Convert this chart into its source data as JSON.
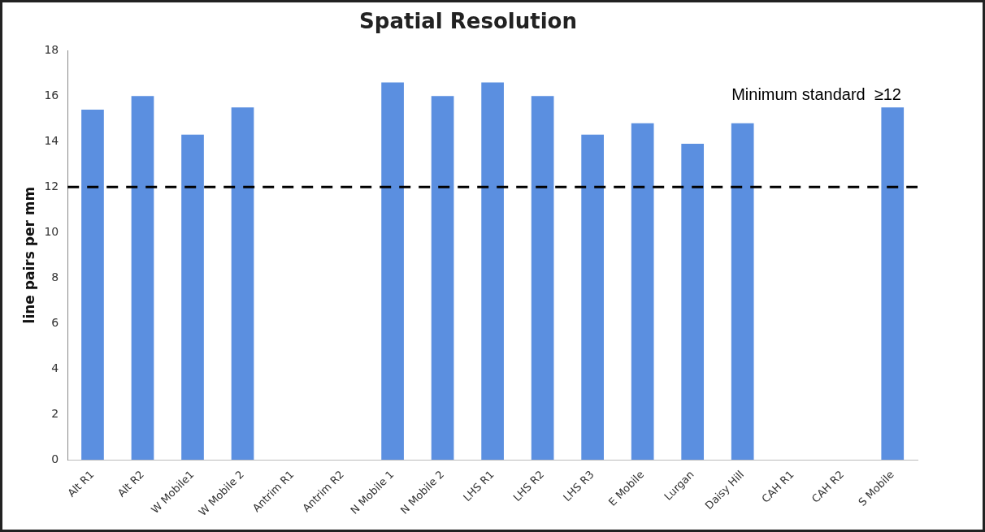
{
  "chart_data": {
    "type": "bar",
    "title": "Spatial Resolution",
    "ylabel": "line pairs per mm",
    "categories": [
      "Alt R1",
      "Alt R2",
      "W Mobile1",
      "W Mobile 2",
      "Antrim R1",
      "Antrim R2",
      "N Mobile 1",
      "N Mobile 2",
      "LHS R1",
      "LHS R2",
      "LHS R3",
      "E Mobile",
      "Lurgan",
      "Daisy Hill",
      "CAH R1",
      "CAH R2",
      "S Mobile"
    ],
    "values": [
      15.4,
      16,
      14.3,
      15.5,
      null,
      null,
      16.6,
      16,
      16.6,
      16,
      14.3,
      14.8,
      13.9,
      14.8,
      null,
      null,
      15.5
    ],
    "color": "#5b8fe0",
    "ylim": [
      0,
      18
    ],
    "yticks": [
      0,
      2,
      4,
      6,
      8,
      10,
      12,
      14,
      16,
      18
    ],
    "grid": false,
    "legend": false,
    "ref_lines": [
      {
        "axis": "y",
        "value": 12,
        "label": "Minimum standard  ≥12",
        "color": "#000000",
        "line_style": "dashed"
      }
    ]
  }
}
